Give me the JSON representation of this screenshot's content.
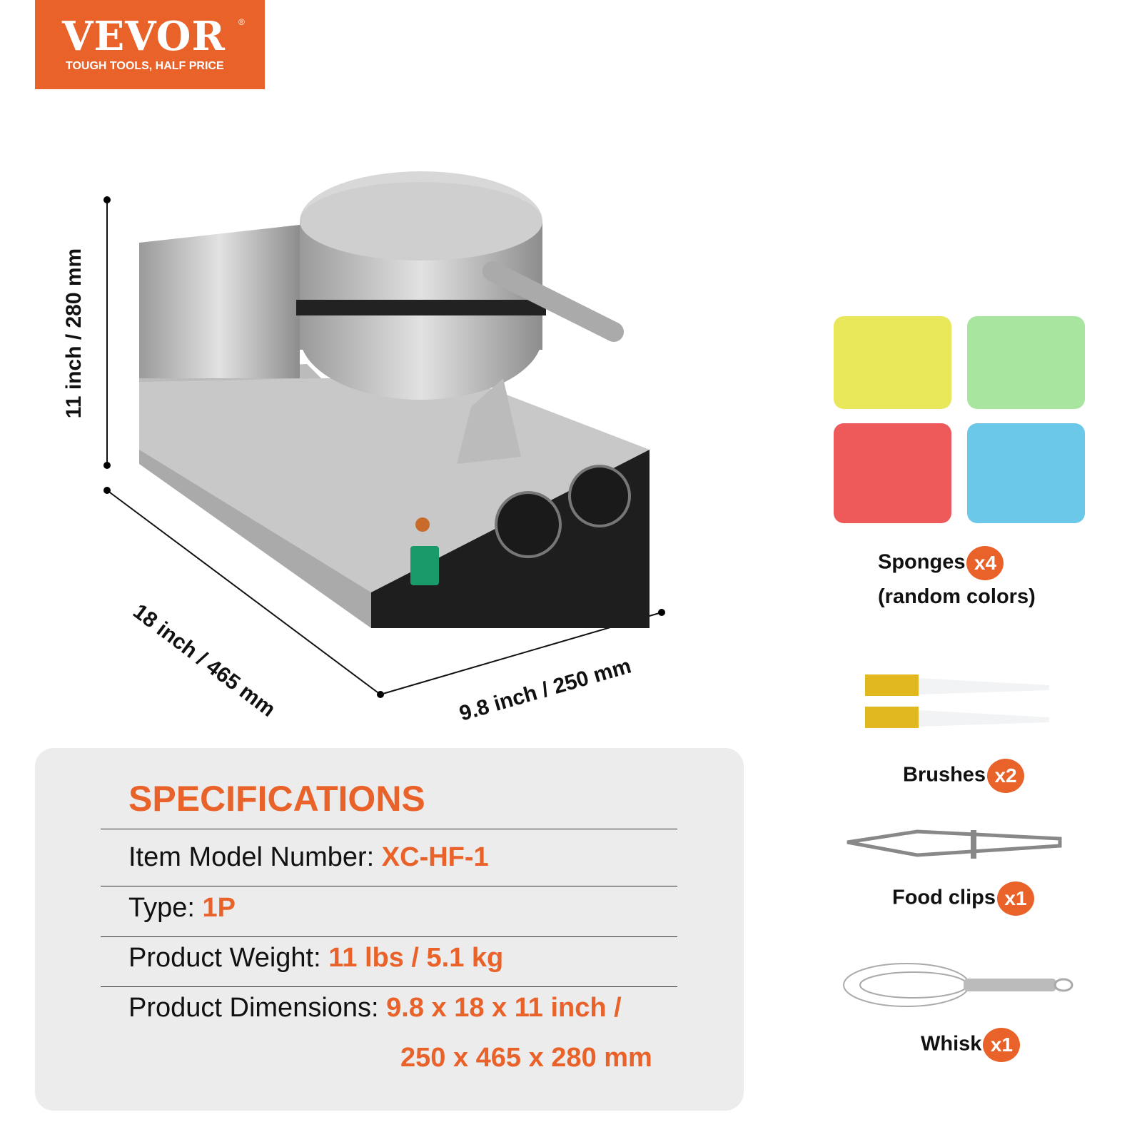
{
  "brand": {
    "name": "VEVOR",
    "registered": "®",
    "tagline": "TOUGH TOOLS, HALF PRICE",
    "color": "#e8622a"
  },
  "dimensions": {
    "height": "11 inch / 280 mm",
    "depth": "18 inch / 465 mm",
    "width": "9.8 inch / 250 mm"
  },
  "specifications": {
    "title": "SPECIFICATIONS",
    "rows": [
      {
        "label": "Item Model Number:",
        "value": "XC-HF-1"
      },
      {
        "label": "Type:",
        "value": "1P"
      },
      {
        "label": "Product Weight:",
        "value": "11 lbs / 5.1 kg"
      },
      {
        "label": "Product Dimensions:",
        "value": "9.8 x 18 x 11 inch /",
        "value2": "250 x 465 x 280 mm"
      }
    ]
  },
  "accessories": [
    {
      "name": "Sponges",
      "qty": "x4",
      "note": "(random colors)",
      "icon": "sponge-icon"
    },
    {
      "name": "Brushes",
      "qty": "x2",
      "icon": "brush-icon"
    },
    {
      "name": "Food clips",
      "qty": "x1",
      "icon": "tongs-icon"
    },
    {
      "name": "Whisk",
      "qty": "x1",
      "icon": "whisk-icon"
    }
  ],
  "sponge_colors": [
    "#e8e85a",
    "#a8e6a0",
    "#ee5a5a",
    "#6cc8e8"
  ]
}
